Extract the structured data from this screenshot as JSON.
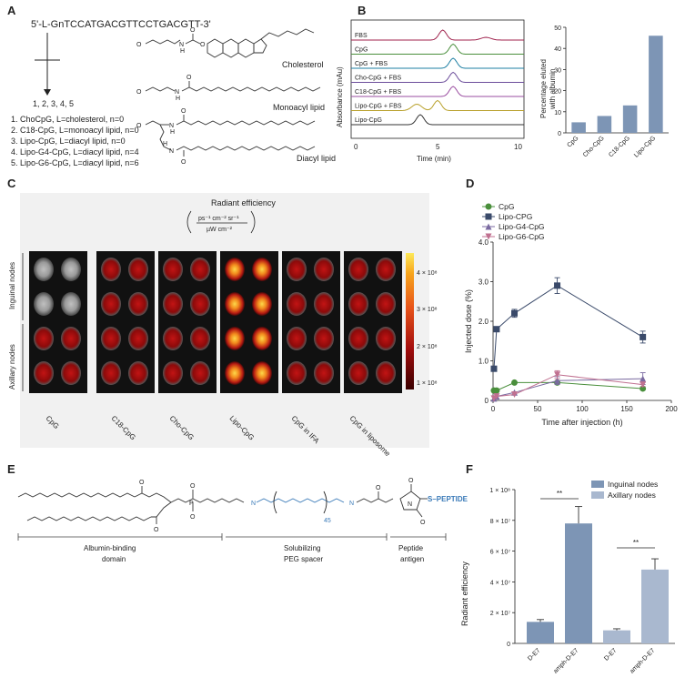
{
  "panels": {
    "A": "A",
    "B": "B",
    "C": "C",
    "D": "D",
    "E": "E",
    "F": "F"
  },
  "panelA": {
    "sequence": "5'-L-GnTCCATGACGTTCCTGACGTT-3'",
    "numbers": "1, 2, 3, 4, 5",
    "list": [
      "1. ChoCpG, L=cholesterol, n=0",
      "2. C18-CpG, L=monoacyl lipid, n=0",
      "3. Lipo-CpG, L=diacyl lipid, n=0",
      "4. Lipo-G4-CpG, L=diacyl lipid, n=4",
      "5. Lipo-G6-CpG, L=diacyl lipid, n=6"
    ],
    "structures": [
      "Cholesterol",
      "Monoacyl lipid",
      "Diacyl lipid"
    ]
  },
  "panelB": {
    "trace_labels": [
      "FBS",
      "CpG",
      "CpG + FBS",
      "Cho-CpG + FBS",
      "C18-CpG + FBS",
      "Lipo-CpG + FBS",
      "Lipo-CpG"
    ],
    "trace_colors": [
      "#a0234e",
      "#4a8f3c",
      "#1d7fa3",
      "#6b4c9a",
      "#9a4ca0",
      "#b8a02a",
      "#333333"
    ],
    "xlabel": "Time (min)",
    "ylabel": "Absorbance (mAu)",
    "xticks": [
      "0",
      "5",
      "10"
    ],
    "bar_ylabel_1": "Percentage eluted",
    "bar_ylabel_2": "with albumin",
    "bar_yticks": [
      "0",
      "10",
      "20",
      "30",
      "40",
      "50"
    ]
  },
  "panelC": {
    "title": "Radiant efficiency",
    "unit_num": "ps⁻¹ cm⁻² sr⁻¹",
    "unit_den": "µW cm⁻²",
    "row_labels": [
      "Inguinal nodes",
      "Axillary nodes"
    ],
    "col_labels": [
      "CpG",
      "C18-CpG",
      "Cho-CpG",
      "Lipo-CpG",
      "CpG in IFA",
      "CpG in liposome"
    ],
    "scale_labels": [
      "4 × 10⁸",
      "3 × 10⁸",
      "2 × 10⁸",
      "1 × 10⁸"
    ]
  },
  "panelE": {
    "peptide": "S–PEPTIDE",
    "repeat": "45",
    "seg1": "Albumin-binding",
    "seg1b": "domain",
    "seg2": "Solubilizing",
    "seg2b": "PEG spacer",
    "seg3": "Peptide",
    "seg3b": "antigen",
    "accent": "#3a7ab8"
  },
  "chart_data": [
    {
      "type": "bar",
      "panel": "B",
      "categories": [
        "CpG",
        "Cho-CpG",
        "C18-CpG",
        "Lipo-CpG"
      ],
      "values": [
        5,
        8,
        13,
        46
      ],
      "ylabel": "Percentage eluted with albumin",
      "ylim": [
        0,
        50
      ],
      "color": "#7d95b5"
    },
    {
      "type": "line",
      "panel": "D",
      "xlabel": "Time after injection (h)",
      "ylabel": "Injected dose (%)",
      "xlim": [
        0,
        200
      ],
      "ylim": [
        0,
        4.0
      ],
      "xticks": [
        0,
        50,
        100,
        150,
        200
      ],
      "yticks": [
        0,
        1.0,
        2.0,
        3.0,
        4.0
      ],
      "ytick_labels": [
        "0",
        "1.0",
        "2.0",
        "3.0",
        "4.0"
      ],
      "x": [
        1,
        4,
        24,
        72,
        168
      ],
      "legend_position": "top-left",
      "series": [
        {
          "name": "CpG",
          "values": [
            0.25,
            0.25,
            0.45,
            0.45,
            0.3
          ],
          "color": "#4a8f3c",
          "marker": "circle"
        },
        {
          "name": "Lipo-CPG",
          "values": [
            0.8,
            1.8,
            2.2,
            2.9,
            1.6
          ],
          "errors": [
            0.05,
            0.05,
            0.1,
            0.2,
            0.15
          ],
          "color": "#3a4a6a",
          "marker": "square"
        },
        {
          "name": "Lipo-G4-CpG",
          "values": [
            0.05,
            0.1,
            0.2,
            0.5,
            0.55
          ],
          "errors": [
            0,
            0,
            0,
            0.1,
            0.15
          ],
          "color": "#7a6aa0",
          "marker": "triangle-up"
        },
        {
          "name": "Lipo-G6-CpG",
          "values": [
            0.05,
            0.1,
            0.15,
            0.65,
            0.4
          ],
          "errors": [
            0,
            0,
            0,
            0.1,
            0.05
          ],
          "color": "#c07090",
          "marker": "triangle-down"
        }
      ]
    },
    {
      "type": "bar",
      "panel": "F",
      "categories": [
        "D-E7",
        "amph-D-E7",
        "D-E7",
        "amph-D-E7"
      ],
      "values": [
        14000000,
        78000000,
        8500000,
        48000000
      ],
      "errors": [
        1500000,
        11000000,
        1000000,
        7000000
      ],
      "groups": [
        "Inguinal nodes",
        "Inguinal nodes",
        "Axillary nodes",
        "Axillary nodes"
      ],
      "legend": [
        "Inguinal nodes",
        "Axillary nodes"
      ],
      "legend_colors": [
        "#7d95b5",
        "#a9b8cf"
      ],
      "ylabel": "Radiant efficiency",
      "ylim": [
        0,
        100000000
      ],
      "ytick_labels": [
        "0",
        "2 × 10⁷",
        "4 × 10⁷",
        "6 × 10⁷",
        "8 × 10⁷",
        "1 × 10⁸"
      ],
      "yticks": [
        0,
        20000000,
        40000000,
        60000000,
        80000000,
        100000000
      ],
      "significance": [
        "**",
        "**"
      ]
    }
  ]
}
